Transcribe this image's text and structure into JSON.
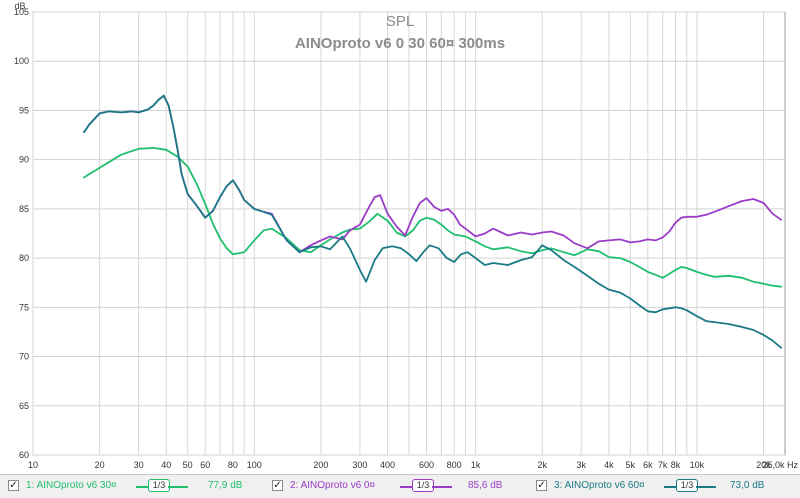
{
  "chart_data": {
    "type": "line",
    "title": "SPL",
    "subtitle": "AINOproto v6 0 30 60¤ 300ms",
    "ylabel": "dB",
    "xlabel": "",
    "x_scale": "log",
    "xlim": [
      10,
      25000
    ],
    "ylim": [
      60,
      105
    ],
    "grid": true,
    "x_ticks": [
      10,
      20,
      30,
      40,
      50,
      60,
      80,
      100,
      200,
      300,
      400,
      600,
      800,
      1000,
      2000,
      3000,
      4000,
      5000,
      6000,
      7000,
      8000,
      10000,
      20000,
      25000
    ],
    "x_tick_labels": [
      "10",
      "20",
      "30",
      "40",
      "50",
      "60",
      "80",
      "100",
      "200",
      "300",
      "400",
      "600",
      "800",
      "1k",
      "2k",
      "3k",
      "4k",
      "5k",
      "6k",
      "7k",
      "8k",
      "10k",
      "20k",
      "25,0k Hz"
    ],
    "y_ticks": [
      60,
      65,
      70,
      75,
      80,
      85,
      90,
      95,
      100,
      105
    ],
    "y_tick_labels": [
      "60",
      "65",
      "70",
      "75",
      "80",
      "85",
      "90",
      "95",
      "100",
      "105"
    ],
    "series": [
      {
        "name": "1: AINOproto v6 30¤",
        "color": "#1fbf6e",
        "x": [
          17,
          25,
          30,
          35,
          40,
          45,
          50,
          55,
          60,
          65,
          70,
          75,
          80,
          90,
          100,
          110,
          120,
          140,
          160,
          180,
          200,
          220,
          250,
          270,
          300,
          330,
          360,
          400,
          440,
          480,
          520,
          560,
          600,
          650,
          700,
          750,
          800,
          900,
          1000,
          1100,
          1200,
          1400,
          1600,
          1800,
          2000,
          2200,
          2500,
          2800,
          3200,
          3600,
          4000,
          4500,
          5000,
          5500,
          6000,
          6500,
          7000,
          7500,
          8000,
          8500,
          9000,
          10000,
          11000,
          12000,
          14000,
          16000,
          18000,
          20000,
          22000,
          24000
        ],
        "y": [
          88.2,
          90.5,
          91.1,
          91.2,
          91.0,
          90.3,
          89.3,
          87.5,
          85.5,
          83.5,
          82.0,
          81.0,
          80.4,
          80.6,
          81.8,
          82.8,
          83.0,
          82.0,
          80.8,
          80.6,
          81.3,
          81.9,
          82.6,
          82.9,
          83.0,
          83.7,
          84.5,
          83.8,
          82.6,
          82.2,
          82.8,
          83.8,
          84.1,
          83.9,
          83.4,
          82.8,
          82.4,
          82.2,
          81.7,
          81.2,
          80.9,
          81.1,
          80.7,
          80.5,
          80.8,
          81.0,
          80.6,
          80.3,
          80.9,
          80.7,
          80.1,
          80.0,
          79.6,
          79.1,
          78.6,
          78.3,
          78.0,
          78.4,
          78.8,
          79.1,
          79.0,
          78.6,
          78.3,
          78.1,
          78.2,
          78.0,
          77.6,
          77.4,
          77.2,
          77.1
        ]
      },
      {
        "name": "2: AINOproto v6 0¤",
        "color": "#9b3cc7",
        "x": [
          17,
          18,
          20,
          22,
          25,
          28,
          30,
          33,
          35,
          37,
          39,
          41,
          43,
          45,
          47,
          50,
          55,
          60,
          65,
          70,
          75,
          80,
          85,
          90,
          100,
          110,
          120,
          140,
          160,
          180,
          200,
          220,
          250,
          270,
          300,
          330,
          350,
          370,
          400,
          440,
          480,
          520,
          560,
          600,
          650,
          700,
          750,
          800,
          850,
          900,
          1000,
          1100,
          1200,
          1400,
          1600,
          1800,
          2000,
          2200,
          2500,
          2800,
          3200,
          3600,
          4000,
          4500,
          5000,
          5500,
          6000,
          6500,
          7000,
          7500,
          8000,
          8500,
          9000,
          10000,
          11000,
          12000,
          14000,
          16000,
          18000,
          20000,
          22000,
          24000
        ],
        "y": [
          92.8,
          93.6,
          94.7,
          94.9,
          94.8,
          94.9,
          94.8,
          95.1,
          95.5,
          96.1,
          96.5,
          95.5,
          93.4,
          91.0,
          88.5,
          86.5,
          85.3,
          84.1,
          84.8,
          86.2,
          87.3,
          87.9,
          87.0,
          85.9,
          85.0,
          84.7,
          84.5,
          81.8,
          80.6,
          81.3,
          81.8,
          82.2,
          81.9,
          82.8,
          83.4,
          85.2,
          86.2,
          86.4,
          84.5,
          83.2,
          82.3,
          84.2,
          85.6,
          86.1,
          85.2,
          84.8,
          85.0,
          84.4,
          83.4,
          83.0,
          82.2,
          82.5,
          83.0,
          82.3,
          82.6,
          82.4,
          82.6,
          82.7,
          82.3,
          81.5,
          81.0,
          81.7,
          81.8,
          81.9,
          81.6,
          81.7,
          81.9,
          81.8,
          82.1,
          82.7,
          83.6,
          84.1,
          84.2,
          84.2,
          84.4,
          84.7,
          85.3,
          85.8,
          86.0,
          85.6,
          84.5,
          83.9
        ]
      },
      {
        "name": "3: AINOproto v6 60¤",
        "color": "#1a7a86",
        "x": [
          17,
          18,
          20,
          22,
          25,
          28,
          30,
          33,
          35,
          37,
          39,
          41,
          43,
          45,
          47,
          50,
          55,
          60,
          65,
          70,
          75,
          80,
          85,
          90,
          100,
          110,
          120,
          140,
          160,
          180,
          200,
          220,
          250,
          270,
          300,
          320,
          350,
          380,
          420,
          460,
          500,
          540,
          580,
          620,
          680,
          740,
          800,
          860,
          920,
          1000,
          1100,
          1200,
          1400,
          1600,
          1800,
          2000,
          2200,
          2500,
          2800,
          3200,
          3600,
          4000,
          4500,
          5000,
          5500,
          6000,
          6500,
          7000,
          7500,
          8000,
          8500,
          9000,
          10000,
          11000,
          12000,
          14000,
          16000,
          18000,
          20000,
          22000,
          24000
        ],
        "y": [
          92.8,
          93.6,
          94.7,
          94.9,
          94.8,
          94.9,
          94.8,
          95.1,
          95.5,
          96.1,
          96.5,
          95.5,
          93.4,
          91.0,
          88.5,
          86.5,
          85.3,
          84.1,
          84.8,
          86.2,
          87.3,
          87.9,
          87.0,
          85.9,
          85.0,
          84.7,
          84.4,
          81.8,
          80.6,
          81.1,
          81.2,
          80.9,
          82.2,
          81.0,
          78.8,
          77.6,
          79.8,
          81.0,
          81.2,
          81.0,
          80.4,
          79.7,
          80.6,
          81.3,
          81.0,
          80.0,
          79.6,
          80.4,
          80.6,
          80.0,
          79.3,
          79.5,
          79.3,
          79.8,
          80.1,
          81.3,
          80.8,
          79.8,
          79.1,
          78.2,
          77.4,
          76.8,
          76.5,
          75.9,
          75.2,
          74.6,
          74.5,
          74.8,
          74.9,
          75.0,
          74.9,
          74.7,
          74.1,
          73.6,
          73.5,
          73.3,
          73.0,
          72.7,
          72.2,
          71.6,
          70.9
        ]
      }
    ]
  },
  "legend": [
    {
      "checked": "✓",
      "name": "1: AINOproto v6 30¤",
      "smoothing": "1/3",
      "average": "77,9 dB",
      "color": "#1fbf6e"
    },
    {
      "checked": "✓",
      "name": "2: AINOproto v6 0¤",
      "smoothing": "1/3",
      "average": "85,6 dB",
      "color": "#9b3cc7"
    },
    {
      "checked": "✓",
      "name": "3: AINOproto v6 60¤",
      "smoothing": "1/3",
      "average": "73,0 dB",
      "color": "#1a7a86"
    }
  ]
}
